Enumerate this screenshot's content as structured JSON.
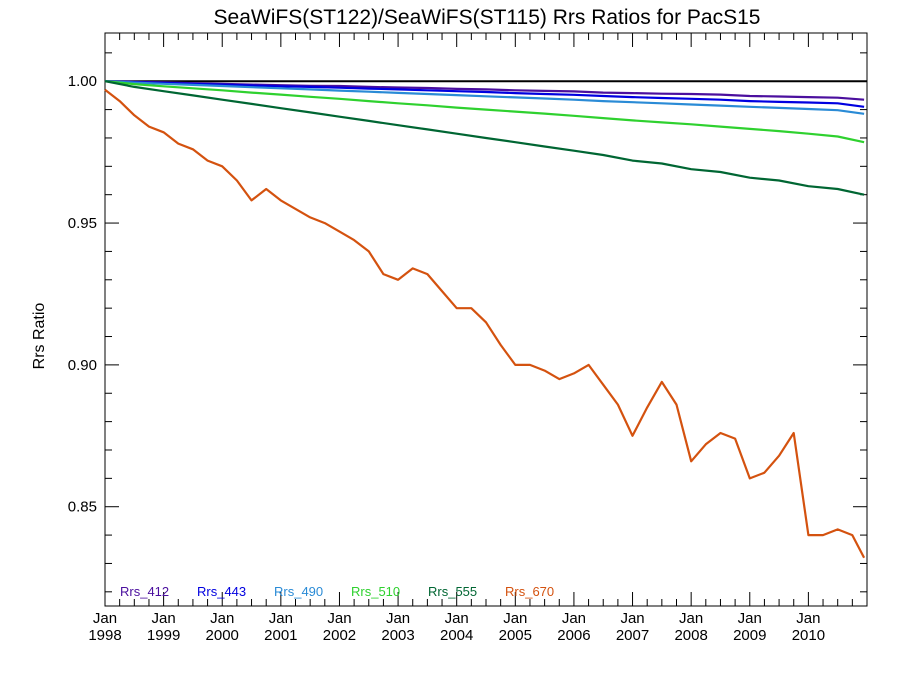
{
  "chart_data": {
    "type": "line",
    "title": "SeaWiFS(ST122)/SeaWiFS(ST115)  Rrs Ratios for PacS15",
    "xlabel": "",
    "ylabel": "Rrs Ratio",
    "xlim": [
      1998.0,
      2011.0
    ],
    "ylim": [
      0.815,
      1.017
    ],
    "x_ticks": [
      {
        "x": 1998,
        "month": "Jan",
        "year": "1998"
      },
      {
        "x": 1999,
        "month": "Jan",
        "year": "1999"
      },
      {
        "x": 2000,
        "month": "Jan",
        "year": "2000"
      },
      {
        "x": 2001,
        "month": "Jan",
        "year": "2001"
      },
      {
        "x": 2002,
        "month": "Jan",
        "year": "2002"
      },
      {
        "x": 2003,
        "month": "Jan",
        "year": "2003"
      },
      {
        "x": 2004,
        "month": "Jan",
        "year": "2004"
      },
      {
        "x": 2005,
        "month": "Jan",
        "year": "2005"
      },
      {
        "x": 2006,
        "month": "Jan",
        "year": "2006"
      },
      {
        "x": 2007,
        "month": "Jan",
        "year": "2007"
      },
      {
        "x": 2008,
        "month": "Jan",
        "year": "2008"
      },
      {
        "x": 2009,
        "month": "Jan",
        "year": "2009"
      },
      {
        "x": 2010,
        "month": "Jan",
        "year": "2010"
      }
    ],
    "y_ticks": [
      {
        "y": 0.85,
        "label": "0.85"
      },
      {
        "y": 0.9,
        "label": "0.90"
      },
      {
        "y": 0.95,
        "label": "0.95"
      },
      {
        "y": 1.0,
        "label": "1.00"
      }
    ],
    "reference_line": {
      "y": 1.0,
      "color": "#000000"
    },
    "legend_position": "bottom-left",
    "series": [
      {
        "name": "Rrs_412",
        "color": "#4b0f9e",
        "x": [
          1998.0,
          1998.5,
          1999.0,
          1999.5,
          2000.0,
          2000.5,
          2001.0,
          2001.5,
          2002.0,
          2002.5,
          2003.0,
          2003.5,
          2004.0,
          2004.5,
          2005.0,
          2005.5,
          2006.0,
          2006.5,
          2007.0,
          2007.5,
          2008.0,
          2008.5,
          2009.0,
          2009.5,
          2010.0,
          2010.5,
          2010.95
        ],
        "y": [
          1.0,
          0.9998,
          0.9996,
          0.9993,
          0.9991,
          0.9988,
          0.9986,
          0.9984,
          0.9983,
          0.998,
          0.9978,
          0.9976,
          0.9973,
          0.9971,
          0.9968,
          0.9966,
          0.9964,
          0.996,
          0.9958,
          0.9956,
          0.9955,
          0.9953,
          0.9948,
          0.9946,
          0.9944,
          0.9942,
          0.9935
        ]
      },
      {
        "name": "Rrs_443",
        "color": "#0000e0",
        "x": [
          1998.0,
          1998.5,
          1999.0,
          1999.5,
          2000.0,
          2000.5,
          2001.0,
          2001.5,
          2002.0,
          2002.5,
          2003.0,
          2003.5,
          2004.0,
          2004.5,
          2005.0,
          2005.5,
          2006.0,
          2006.5,
          2007.0,
          2007.5,
          2008.0,
          2008.5,
          2009.0,
          2009.5,
          2010.0,
          2010.5,
          2010.95
        ],
        "y": [
          1.0,
          0.9997,
          0.9994,
          0.9991,
          0.9988,
          0.9985,
          0.9982,
          0.998,
          0.9977,
          0.9974,
          0.9971,
          0.9968,
          0.9965,
          0.9962,
          0.9958,
          0.9955,
          0.9952,
          0.9948,
          0.9944,
          0.9941,
          0.9938,
          0.9935,
          0.993,
          0.9927,
          0.9925,
          0.9922,
          0.991
        ]
      },
      {
        "name": "Rrs_490",
        "color": "#2a8bd6",
        "x": [
          1998.0,
          1998.5,
          1999.0,
          1999.5,
          2000.0,
          2000.5,
          2001.0,
          2001.5,
          2002.0,
          2002.5,
          2003.0,
          2003.5,
          2004.0,
          2004.5,
          2005.0,
          2005.5,
          2006.0,
          2006.5,
          2007.0,
          2007.5,
          2008.0,
          2008.5,
          2009.0,
          2009.5,
          2010.0,
          2010.5,
          2010.95
        ],
        "y": [
          1.0,
          0.9995,
          0.9991,
          0.9987,
          0.9983,
          0.9979,
          0.9975,
          0.9971,
          0.9967,
          0.9963,
          0.9959,
          0.9955,
          0.9951,
          0.9947,
          0.9943,
          0.9939,
          0.9935,
          0.993,
          0.9926,
          0.9922,
          0.9918,
          0.9914,
          0.991,
          0.9906,
          0.9902,
          0.9898,
          0.9885
        ]
      },
      {
        "name": "Rrs_510",
        "color": "#2fd12f",
        "x": [
          1998.0,
          1998.5,
          1999.0,
          1999.5,
          2000.0,
          2000.5,
          2001.0,
          2001.5,
          2002.0,
          2002.5,
          2003.0,
          2003.5,
          2004.0,
          2004.5,
          2005.0,
          2005.5,
          2006.0,
          2006.5,
          2007.0,
          2007.5,
          2008.0,
          2008.5,
          2009.0,
          2009.5,
          2010.0,
          2010.5,
          2010.95
        ],
        "y": [
          1.0,
          0.999,
          0.9982,
          0.9975,
          0.9968,
          0.996,
          0.9953,
          0.9945,
          0.9938,
          0.993,
          0.9922,
          0.9915,
          0.9907,
          0.99,
          0.9893,
          0.9886,
          0.9878,
          0.987,
          0.9862,
          0.9855,
          0.9848,
          0.984,
          0.9832,
          0.9824,
          0.9815,
          0.9805,
          0.9785
        ]
      },
      {
        "name": "Rrs_555",
        "color": "#006633",
        "x": [
          1998.0,
          1998.5,
          1999.0,
          1999.5,
          2000.0,
          2000.5,
          2001.0,
          2001.5,
          2002.0,
          2002.5,
          2003.0,
          2003.5,
          2004.0,
          2004.5,
          2005.0,
          2005.5,
          2006.0,
          2006.5,
          2007.0,
          2007.5,
          2008.0,
          2008.5,
          2009.0,
          2009.5,
          2010.0,
          2010.5,
          2010.95
        ],
        "y": [
          1.0,
          0.998,
          0.9965,
          0.995,
          0.9935,
          0.992,
          0.9905,
          0.989,
          0.9875,
          0.986,
          0.9845,
          0.983,
          0.9815,
          0.98,
          0.9785,
          0.977,
          0.9755,
          0.974,
          0.972,
          0.971,
          0.969,
          0.968,
          0.966,
          0.965,
          0.963,
          0.962,
          0.96
        ]
      },
      {
        "name": "Rrs_670",
        "color": "#d4520f",
        "x": [
          1998.0,
          1998.25,
          1998.5,
          1998.75,
          1999.0,
          1999.25,
          1999.5,
          1999.75,
          2000.0,
          2000.25,
          2000.5,
          2000.75,
          2001.0,
          2001.25,
          2001.5,
          2001.75,
          2002.0,
          2002.25,
          2002.5,
          2002.75,
          2003.0,
          2003.25,
          2003.5,
          2003.75,
          2004.0,
          2004.25,
          2004.5,
          2004.75,
          2005.0,
          2005.25,
          2005.5,
          2005.75,
          2006.0,
          2006.25,
          2006.5,
          2006.75,
          2007.0,
          2007.25,
          2007.5,
          2007.75,
          2008.0,
          2008.25,
          2008.5,
          2008.75,
          2009.0,
          2009.25,
          2009.5,
          2009.75,
          2010.0,
          2010.25,
          2010.5,
          2010.75,
          2010.95
        ],
        "y": [
          0.997,
          0.993,
          0.988,
          0.984,
          0.982,
          0.978,
          0.976,
          0.972,
          0.97,
          0.965,
          0.958,
          0.962,
          0.958,
          0.955,
          0.952,
          0.95,
          0.947,
          0.944,
          0.94,
          0.932,
          0.93,
          0.934,
          0.932,
          0.926,
          0.92,
          0.92,
          0.915,
          0.907,
          0.9,
          0.9,
          0.898,
          0.895,
          0.897,
          0.9,
          0.893,
          0.886,
          0.875,
          0.885,
          0.894,
          0.886,
          0.866,
          0.872,
          0.876,
          0.874,
          0.86,
          0.862,
          0.868,
          0.876,
          0.84,
          0.84,
          0.842,
          0.84,
          0.832
        ]
      }
    ]
  }
}
